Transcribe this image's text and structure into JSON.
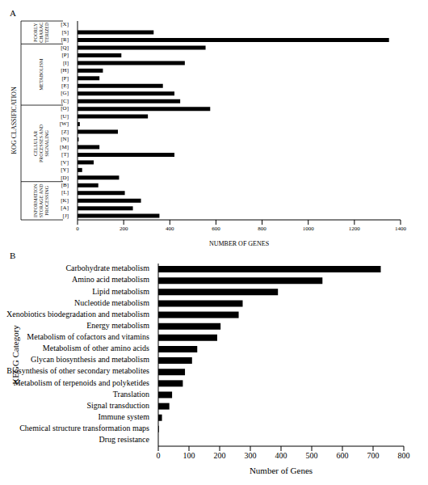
{
  "chart_data": [
    {
      "type": "bar",
      "title": "A",
      "orientation": "horizontal",
      "color": "#000000",
      "x_label": "NUMBER OF GENES",
      "y_label": "KOG CLASSIFICATION",
      "categories": [
        "[X]",
        "[S]",
        "[R]",
        "[Q]",
        "[P]",
        "[I]",
        "[H]",
        "[F]",
        "[E]",
        "[G]",
        "[C]",
        "[O]",
        "[U]",
        "[W]",
        "[Z]",
        "[N]",
        "[M]",
        "[T]",
        "[V]",
        "[Y]",
        "[D]",
        "[B]",
        "[L]",
        "[K]",
        "[A]",
        "[J]"
      ],
      "values": [
        0,
        330,
        1350,
        555,
        190,
        465,
        110,
        95,
        370,
        420,
        445,
        575,
        305,
        10,
        175,
        5,
        95,
        420,
        70,
        20,
        180,
        90,
        205,
        275,
        240,
        355
      ],
      "xlim": [
        0,
        1400
      ],
      "xticks": [
        0,
        200,
        400,
        600,
        800,
        1000,
        1200,
        1400
      ],
      "groups": [
        {
          "label": [
            "POORLY",
            "CHARAC",
            "TERIZED"
          ],
          "categories": [
            "[X]",
            "[S]",
            "[R]"
          ]
        },
        {
          "label": [
            "METABOLISM"
          ],
          "categories": [
            "[Q]",
            "[P]",
            "[I]",
            "[H]",
            "[F]",
            "[E]",
            "[G]",
            "[C]"
          ]
        },
        {
          "label": [
            "CELLULAR",
            "PROCESSES AND",
            "SIGNALING"
          ],
          "categories": [
            "[O]",
            "[U]",
            "[W]",
            "[Z]",
            "[N]",
            "[M]",
            "[T]",
            "[V]",
            "[Y]",
            "[D]"
          ]
        },
        {
          "label": [
            "INFORMATION",
            "STORAGE AND",
            "PROCESSING"
          ],
          "categories": [
            "[B]",
            "[L]",
            "[K]",
            "[A]",
            "[J]"
          ]
        }
      ]
    },
    {
      "type": "bar",
      "title": "B",
      "orientation": "horizontal",
      "color": "#000000",
      "x_label": "Number of Genes",
      "y_label": "KEGG Category",
      "categories": [
        "Carbohydrate metabolism",
        "Amino acid metabolism",
        "Lipid metabolism",
        "Nucleotide metabolism",
        "Xenobiotics biodegradation and metabolism",
        "Energy metabolism",
        "Metabolism of cofactors and vitamins",
        "Metabolism of other amino acids",
        "Glycan biosynthesis and metabolism",
        "Biosynthesis of other secondary metabolites",
        "Metabolism of terpenoids and polyketides",
        "Translation",
        "Signal transduction",
        "Immune system",
        "Chemical structure transformation maps",
        "Drug resistance"
      ],
      "values": [
        725,
        535,
        390,
        275,
        262,
        203,
        192,
        127,
        110,
        87,
        80,
        45,
        36,
        12,
        2,
        0
      ],
      "xlim": [
        0,
        800
      ],
      "xticks": [
        0,
        100,
        200,
        300,
        400,
        500,
        600,
        700,
        800
      ]
    }
  ]
}
